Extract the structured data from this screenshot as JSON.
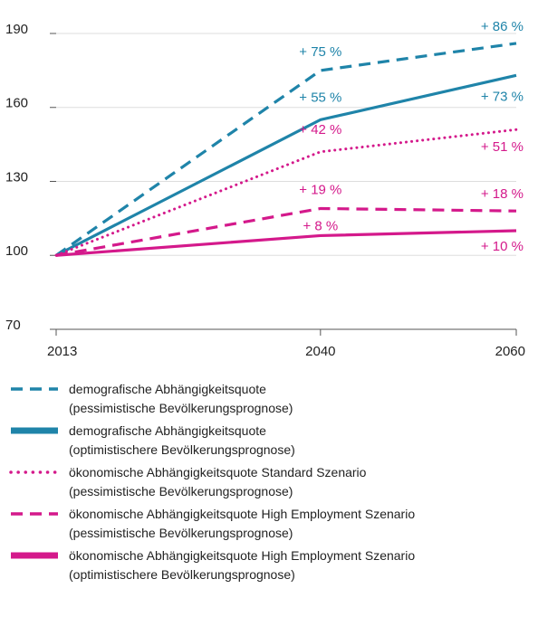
{
  "chart_data": {
    "type": "line",
    "x": [
      2013,
      2040,
      2060
    ],
    "xlim": [
      2013,
      2060
    ],
    "xticks": [
      2013,
      2040,
      2060
    ],
    "ylim": [
      70,
      190
    ],
    "yticks": [
      70,
      100,
      130,
      160,
      190
    ],
    "grid": true,
    "series": [
      {
        "name": "demografische Abhängigkeitsquote\n(pessimistische Bevölkerungsprognose)",
        "color": "#1f84a9",
        "style": "dashed",
        "values": [
          100,
          175,
          186
        ],
        "change_labels": [
          null,
          "+ 75 %",
          "+ 86 %"
        ]
      },
      {
        "name": "demografische Abhängigkeitsquote\n(optimistischere Bevölkerungsprognose)",
        "color": "#1f84a9",
        "style": "solid",
        "values": [
          100,
          155,
          173
        ],
        "change_labels": [
          null,
          "+ 55 %",
          "+ 73 %"
        ]
      },
      {
        "name": "ökonomische Abhängigkeitsquote Standard Szenario\n(pessimistische Bevölkerungsprognose)",
        "color": "#d4198b",
        "style": "dotted",
        "values": [
          100,
          142,
          151
        ],
        "change_labels": [
          null,
          "+ 42 %",
          "+ 51 %"
        ]
      },
      {
        "name": "ökonomische Abhängigkeitsquote High Employment Szenario\n(pessimistische Bevölkerungsprognose)",
        "color": "#d4198b",
        "style": "dashed",
        "values": [
          100,
          119,
          118
        ],
        "change_labels": [
          null,
          "+ 19 %",
          "+ 18 %"
        ]
      },
      {
        "name": "ökonomische Abhängigkeitsquote High Employment Szenario\n(optimistischere Bevölkerungsprognose)",
        "color": "#d4198b",
        "style": "solid",
        "values": [
          100,
          108,
          110
        ],
        "change_labels": [
          null,
          "+ 8 %",
          "+ 10 %"
        ]
      }
    ]
  }
}
